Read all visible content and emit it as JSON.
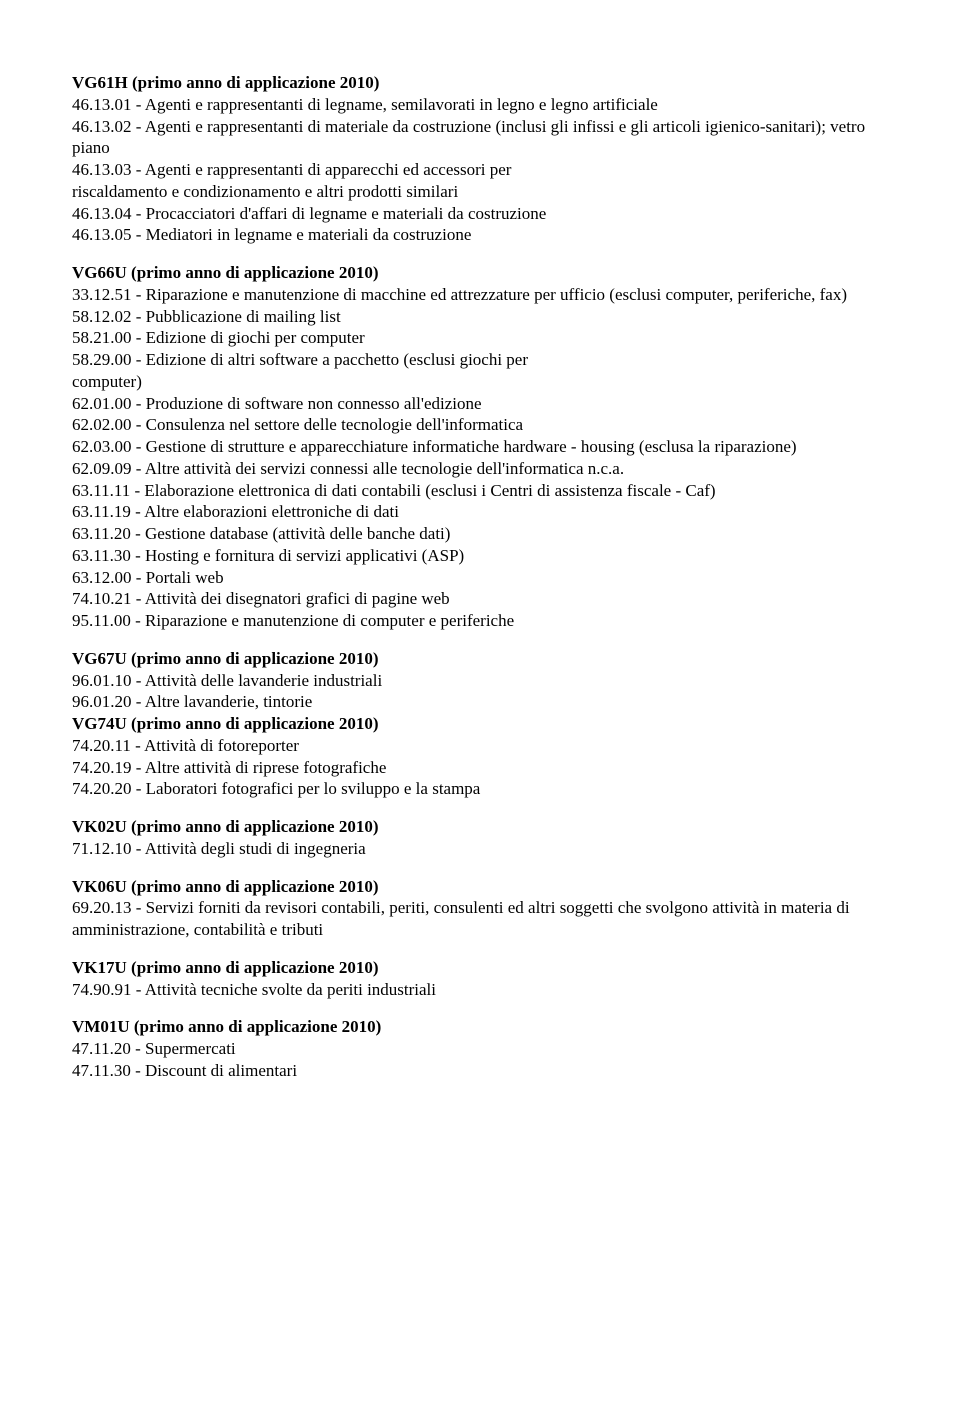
{
  "sections": [
    {
      "title": "VG61H (primo anno di applicazione 2010)",
      "items": [
        "46.13.01 - Agenti e rappresentanti di legname, semilavorati in legno e legno artificiale",
        "46.13.02 - Agenti e rappresentanti di materiale da costruzione (inclusi gli infissi e gli articoli igienico-sanitari); vetro piano",
        "46.13.03 - Agenti e rappresentanti di apparecchi ed accessori per",
        "riscaldamento e condizionamento e altri prodotti similari",
        "46.13.04 - Procacciatori d'affari di legname e materiali da costruzione",
        "46.13.05 - Mediatori in legname e materiali da costruzione"
      ]
    },
    {
      "title": "VG66U (primo anno di applicazione 2010)",
      "items": [
        "33.12.51 - Riparazione e manutenzione di macchine ed attrezzature per ufficio (esclusi computer, periferiche, fax)",
        "58.12.02 - Pubblicazione di mailing list",
        "58.21.00 - Edizione di giochi per computer",
        "58.29.00 - Edizione di altri software a pacchetto (esclusi giochi per",
        "computer)",
        "62.01.00 - Produzione di software non connesso all'edizione",
        "62.02.00 - Consulenza nel settore delle tecnologie dell'informatica",
        "62.03.00 - Gestione di strutture e apparecchiature informatiche hardware - housing (esclusa la riparazione)",
        "62.09.09 - Altre attività dei servizi connessi alle tecnologie dell'informatica n.c.a.",
        "63.11.11 - Elaborazione elettronica di dati contabili (esclusi i Centri di assistenza fiscale - Caf)",
        "63.11.19 - Altre elaborazioni elettroniche di dati",
        "63.11.20 - Gestione database (attività delle banche dati)",
        "63.11.30 - Hosting e fornitura di servizi applicativi (ASP)",
        "63.12.00 - Portali web",
        "74.10.21 - Attività dei disegnatori grafici di pagine web",
        "95.11.00 - Riparazione e manutenzione di computer e periferiche"
      ]
    },
    {
      "title": "VG67U (primo anno di applicazione 2010)",
      "items": [
        "96.01.10 - Attività delle lavanderie industriali",
        "96.01.20 - Altre lavanderie, tintorie"
      ],
      "subtitle": "VG74U (primo anno di applicazione 2010)",
      "subitems": [
        "74.20.11 - Attività di fotoreporter",
        "74.20.19 - Altre attività di riprese fotografiche",
        "74.20.20 - Laboratori fotografici per lo sviluppo e la stampa"
      ]
    },
    {
      "title": "VK02U (primo anno di applicazione 2010)",
      "items": [
        "71.12.10 - Attività degli studi di ingegneria"
      ]
    },
    {
      "title": "VK06U (primo anno di applicazione 2010)",
      "items": [
        "69.20.13 - Servizi forniti da revisori contabili, periti, consulenti ed altri soggetti che svolgono attività in materia di amministrazione, contabilità e tributi"
      ]
    },
    {
      "title": "VK17U (primo anno di applicazione 2010)",
      "items": [
        "74.90.91 - Attività tecniche svolte da periti industriali"
      ]
    },
    {
      "title": "VM01U (primo anno di applicazione 2010)",
      "items": [
        "47.11.20 - Supermercati",
        "47.11.30 - Discount di alimentari"
      ]
    }
  ]
}
